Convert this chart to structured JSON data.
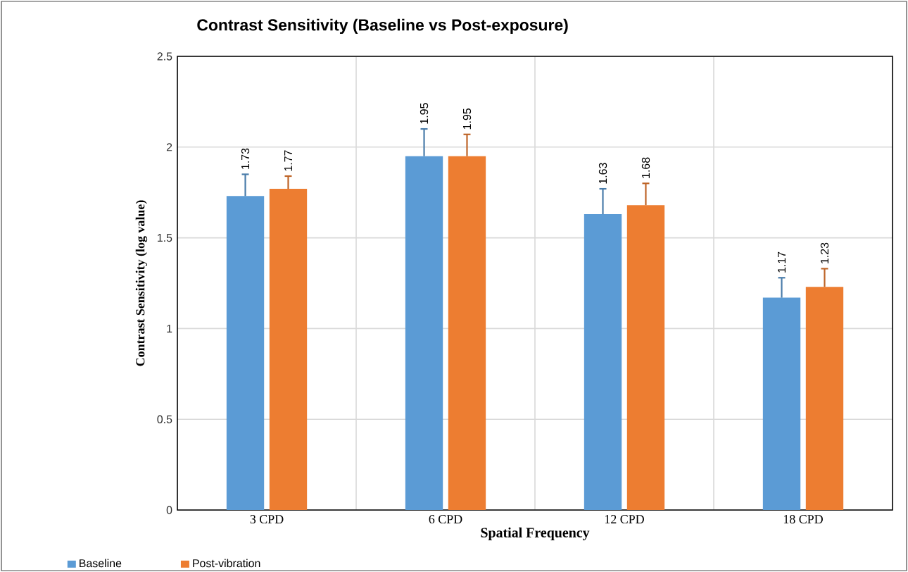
{
  "chart_data": {
    "type": "bar",
    "title": "Contrast Sensitivity (Baseline vs Post-exposure)",
    "xlabel": "Spatial Frequency",
    "ylabel": "Contrast Sensitivity (log value)",
    "categories": [
      "3 CPD",
      "6 CPD",
      "12 CPD",
      "18 CPD"
    ],
    "series": [
      {
        "name": "Baseline",
        "color": "#5b9bd5",
        "values": [
          1.73,
          1.95,
          1.63,
          1.17
        ],
        "errors": [
          0.12,
          0.15,
          0.14,
          0.11
        ]
      },
      {
        "name": "Post-vibration",
        "color": "#ed7d31",
        "values": [
          1.77,
          1.95,
          1.68,
          1.23
        ],
        "errors": [
          0.07,
          0.12,
          0.12,
          0.1
        ]
      }
    ],
    "ylim": [
      0,
      2.5
    ],
    "yticks": [
      0,
      0.5,
      1,
      1.5,
      2,
      2.5
    ],
    "grid": true,
    "legend": "bottom left",
    "data_labels": true
  }
}
